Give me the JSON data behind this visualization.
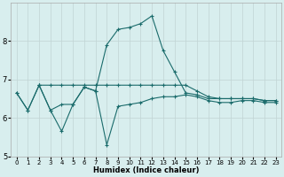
{
  "xlabel": "Humidex (Indice chaleur)",
  "bg_color": "#d8eeee",
  "line_color": "#1a6b6b",
  "grid_color": "#c0d4d4",
  "xlim": [
    -0.5,
    23.5
  ],
  "ylim": [
    5.0,
    9.0
  ],
  "yticks": [
    5,
    6,
    7,
    8
  ],
  "xticks": [
    0,
    1,
    2,
    3,
    4,
    5,
    6,
    7,
    8,
    9,
    10,
    11,
    12,
    13,
    14,
    15,
    16,
    17,
    18,
    19,
    20,
    21,
    22,
    23
  ],
  "series": [
    {
      "x": [
        0,
        1,
        2,
        3,
        4,
        5,
        6,
        7,
        8,
        9,
        10,
        11,
        12,
        13,
        14,
        15,
        16,
        17,
        18,
        19,
        20,
        21,
        22,
        23
      ],
      "y": [
        6.65,
        6.2,
        6.85,
        6.2,
        6.35,
        6.35,
        6.8,
        6.7,
        7.9,
        8.3,
        8.35,
        8.45,
        8.65,
        7.75,
        7.2,
        6.65,
        6.6,
        6.5,
        6.5,
        6.5,
        6.5,
        6.5,
        6.45,
        6.45
      ]
    },
    {
      "x": [
        0,
        1,
        2,
        3,
        4,
        5,
        6,
        7,
        8,
        9,
        10,
        11,
        12,
        13,
        14,
        15,
        16,
        17,
        18,
        19,
        20,
        21,
        22,
        23
      ],
      "y": [
        6.65,
        6.2,
        6.85,
        6.2,
        5.65,
        6.35,
        6.8,
        6.7,
        5.3,
        6.3,
        6.35,
        6.4,
        6.5,
        6.55,
        6.55,
        6.6,
        6.55,
        6.45,
        6.4,
        6.4,
        6.45,
        6.45,
        6.4,
        6.4
      ]
    },
    {
      "x": [
        2,
        3,
        4,
        5,
        6,
        7,
        8,
        9,
        10,
        11,
        12,
        13,
        14,
        15,
        16,
        17,
        18,
        19,
        20,
        21,
        22,
        23
      ],
      "y": [
        6.85,
        6.85,
        6.85,
        6.85,
        6.85,
        6.85,
        6.85,
        6.85,
        6.85,
        6.85,
        6.85,
        6.85,
        6.85,
        6.85,
        6.7,
        6.55,
        6.5,
        6.5,
        6.5,
        6.5,
        6.45,
        6.45
      ]
    }
  ]
}
